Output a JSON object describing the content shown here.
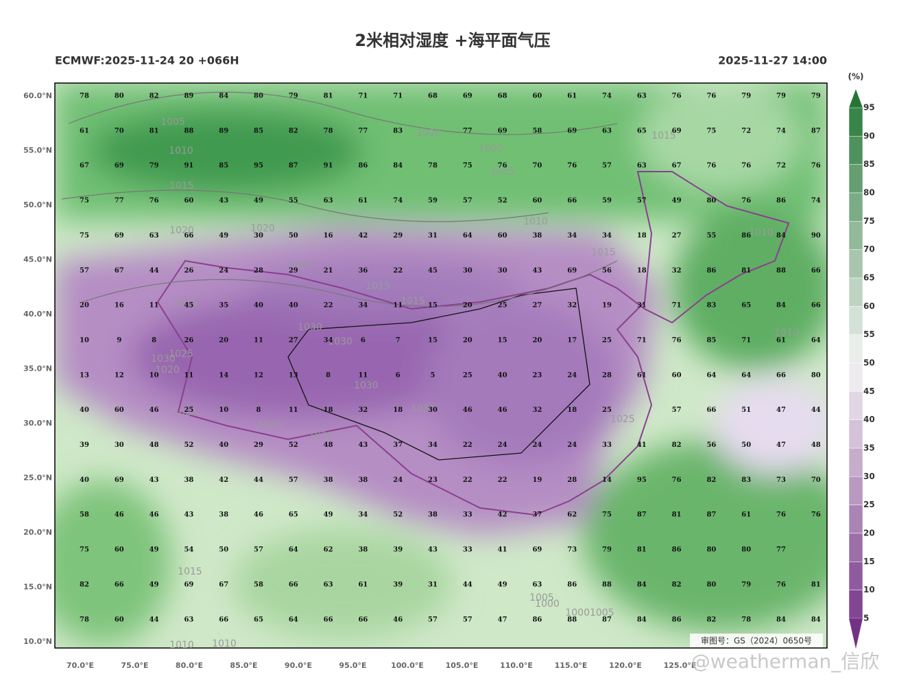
{
  "header": {
    "title": "2米相对湿度 +海平面气压",
    "model_run": "ECMWF:2025-11-24 20 +066H",
    "valid_time": "2025-11-27 14:00"
  },
  "map": {
    "lat_labels": [
      "60.0°N",
      "55.0°N",
      "50.0°N",
      "45.0°N",
      "40.0°N",
      "35.0°N",
      "30.0°N",
      "25.0°N",
      "20.0°N",
      "15.0°N",
      "10.0°N"
    ],
    "lon_labels": [
      "70.0°E",
      "75.0°E",
      "80.0°E",
      "85.0°E",
      "90.0°E",
      "95.0°E",
      "100.0°E",
      "105.0°E",
      "110.0°E",
      "115.0°E",
      "120.0°E",
      "125.0°E"
    ],
    "values": [
      [
        78,
        80,
        82,
        89,
        84,
        80,
        79,
        81,
        71,
        71,
        68,
        69,
        68,
        60,
        61,
        74,
        63,
        76,
        76,
        79,
        79,
        79
      ],
      [
        61,
        70,
        81,
        88,
        89,
        85,
        82,
        78,
        77,
        83,
        null,
        77,
        69,
        58,
        69,
        63,
        65,
        69,
        75,
        72,
        74,
        87
      ],
      [
        67,
        69,
        79,
        91,
        85,
        95,
        87,
        91,
        86,
        84,
        78,
        75,
        76,
        70,
        76,
        57,
        63,
        67,
        76,
        76,
        72,
        76
      ],
      [
        75,
        77,
        76,
        60,
        43,
        49,
        55,
        63,
        61,
        74,
        59,
        57,
        52,
        60,
        66,
        59,
        57,
        49,
        80,
        76,
        86,
        74
      ],
      [
        75,
        69,
        63,
        66,
        49,
        30,
        50,
        16,
        42,
        29,
        31,
        64,
        60,
        38,
        34,
        34,
        18,
        27,
        55,
        86,
        84,
        90
      ],
      [
        57,
        67,
        44,
        26,
        24,
        28,
        29,
        21,
        36,
        22,
        45,
        30,
        30,
        43,
        69,
        56,
        18,
        32,
        86,
        81,
        88,
        66
      ],
      [
        20,
        16,
        11,
        45,
        35,
        40,
        40,
        22,
        34,
        11,
        15,
        20,
        25,
        27,
        32,
        19,
        31,
        71,
        83,
        65,
        84,
        66
      ],
      [
        10,
        9,
        8,
        26,
        20,
        11,
        27,
        34,
        6,
        7,
        15,
        20,
        15,
        20,
        17,
        25,
        71,
        76,
        85,
        71,
        61,
        64
      ],
      [
        13,
        12,
        10,
        11,
        14,
        12,
        13,
        8,
        11,
        6,
        5,
        25,
        40,
        23,
        24,
        28,
        61,
        60,
        64,
        64,
        66,
        80
      ],
      [
        40,
        60,
        46,
        25,
        10,
        8,
        11,
        18,
        32,
        18,
        30,
        46,
        46,
        32,
        18,
        25,
        null,
        57,
        66,
        51,
        47,
        44
      ],
      [
        39,
        30,
        48,
        52,
        40,
        29,
        52,
        48,
        43,
        37,
        34,
        22,
        24,
        24,
        24,
        33,
        41,
        82,
        56,
        50,
        47,
        48
      ],
      [
        40,
        69,
        43,
        38,
        42,
        44,
        57,
        38,
        38,
        24,
        23,
        22,
        22,
        19,
        28,
        14,
        95,
        76,
        82,
        83,
        73,
        70
      ],
      [
        58,
        46,
        46,
        43,
        38,
        46,
        65,
        49,
        34,
        52,
        38,
        33,
        42,
        37,
        62,
        75,
        87,
        81,
        87,
        61,
        76,
        76
      ],
      [
        75,
        60,
        49,
        54,
        50,
        57,
        64,
        62,
        38,
        39,
        43,
        33,
        41,
        69,
        73,
        79,
        81,
        86,
        80,
        80,
        77,
        null
      ],
      [
        82,
        66,
        49,
        69,
        67,
        58,
        66,
        63,
        61,
        39,
        31,
        44,
        49,
        63,
        86,
        88,
        84,
        82,
        80,
        79,
        76,
        81
      ],
      [
        78,
        60,
        44,
        63,
        66,
        65,
        64,
        66,
        66,
        46,
        57,
        57,
        47,
        86,
        88,
        87,
        84,
        86,
        82,
        78,
        84,
        84
      ]
    ],
    "isobar_labels": [
      "1005",
      "1010",
      "1015",
      "1020",
      "1020",
      "1020",
      "1015",
      "1015",
      "1025",
      "1030",
      "1030",
      "1030",
      "1025",
      "1020",
      "1030",
      "1030",
      "1025",
      "1020",
      "1020",
      "1000",
      "1000",
      "1005",
      "1010",
      "1015",
      "1015",
      "1010",
      "1010",
      "1025",
      "1015",
      "1005",
      "1000",
      "10001005",
      "1010",
      "1010"
    ],
    "approval": "审图号：GS（2024）0650号",
    "watermark": "@weatherman_信欣"
  },
  "colorbar": {
    "unit": "(%)",
    "levels": [
      95,
      90,
      85,
      80,
      75,
      70,
      65,
      60,
      55,
      50,
      45,
      40,
      35,
      30,
      25,
      20,
      15,
      10,
      5
    ]
  }
}
